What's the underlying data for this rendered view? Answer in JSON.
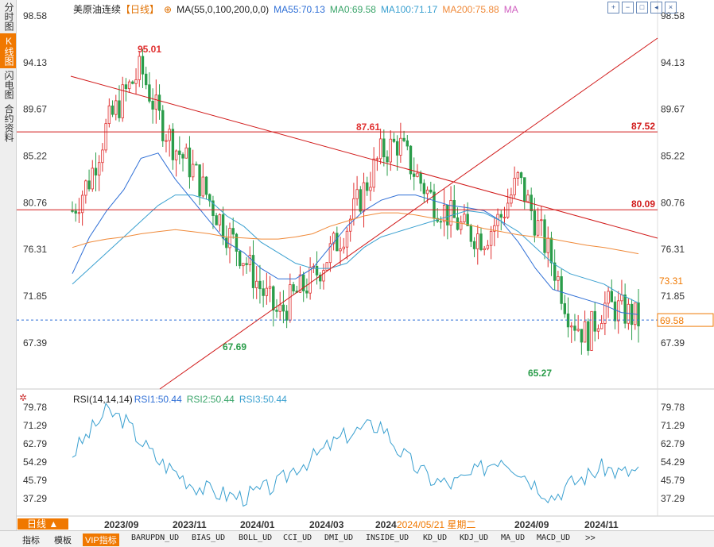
{
  "sidebar": {
    "tabs": [
      {
        "label": "分时图",
        "active": false
      },
      {
        "label": "K线图",
        "active": true
      },
      {
        "label": "闪电图",
        "active": false
      },
      {
        "label": "合约资料",
        "active": false
      }
    ]
  },
  "header": {
    "title": "美原油连续",
    "period_tag": "【日线】",
    "ma_params": "MA(55,0,100,200,0,0)",
    "ma55": "MA55:70.13",
    "ma0": "MA0:69.58",
    "ma100": "MA100:71.17",
    "ma200": "MA200:75.88",
    "ma_extra": "MA",
    "tool_icons": [
      "zoom-in-icon",
      "zoom-out-icon",
      "fullscreen-icon",
      "arrow-left-icon",
      "close-icon"
    ]
  },
  "colors": {
    "accent": "#f07800",
    "up": "#e03030",
    "down": "#2a9d4a",
    "ma55": "#2f6fd6",
    "ma0": "#3aa56a",
    "ma100": "#3aa0d0",
    "ma200": "#f08a3a",
    "trendline": "#d11a1a",
    "last_price": "#2f6fd6"
  },
  "price_axis": {
    "ticks": [
      "98.58",
      "94.13",
      "89.67",
      "85.22",
      "80.76",
      "76.31",
      "71.85",
      "67.39"
    ],
    "last_price_label": "69.58",
    "highlight_label": "73.31"
  },
  "annotations": {
    "high_2023": "95.01",
    "low_2023": "67.69",
    "high_2024": "87.61",
    "low_2024": "65.27",
    "line_887": "87.52",
    "line_800": "80.09"
  },
  "rsi": {
    "params": "RSI(14,14,14)",
    "rsi1": "RSI1:50.44",
    "rsi2": "RSI2:50.44",
    "rsi3": "RSI3:50.44",
    "ticks": [
      "79.78",
      "71.29",
      "62.79",
      "54.29",
      "45.79",
      "37.29"
    ],
    "gear_icon": "gear-icon"
  },
  "time_axis": {
    "labels": [
      "2023/09",
      "2023/11",
      "2024/01",
      "2024/03",
      "2024",
      "2024/09",
      "2024/11"
    ],
    "cursor_label": "2024/05/21 星期二"
  },
  "bottom": {
    "period_select": "日线",
    "tabs": [
      "指标",
      "模板",
      "VIP指标",
      "BARUPDN_UD",
      "BIAS_UD",
      "BOLL_UD",
      "CCI_UD",
      "DMI_UD",
      "INSIDE_UD",
      "KD_UD",
      "KDJ_UD",
      "MA_UD",
      "MACD_UD",
      ">>"
    ]
  },
  "chart_data": {
    "type": "candlestick",
    "title": "美原油连续",
    "ylim": [
      64,
      99
    ],
    "series": [
      {
        "name": "MA55",
        "values": [
          74.0,
          77.5,
          80.0,
          82.0,
          85.0,
          85.5,
          83.0,
          81.0,
          79.0,
          77.0,
          76.0,
          74.5,
          73.5,
          73.5,
          74.5,
          76.5,
          78.5,
          80.0,
          81.0,
          81.5,
          81.5,
          81.0,
          80.5,
          80.3,
          80.0,
          79.0,
          77.0,
          74.5,
          72.5,
          72.0,
          71.5,
          71.0,
          70.3,
          70.1
        ]
      },
      {
        "name": "MA100",
        "values": [
          73.0,
          74.5,
          76.0,
          77.5,
          79.0,
          80.5,
          81.5,
          81.5,
          81.0,
          79.5,
          78.5,
          77.0,
          76.0,
          75.0,
          74.5,
          74.5,
          75.0,
          76.5,
          77.5,
          78.0,
          78.5,
          79.0,
          79.5,
          80.0,
          79.8,
          79.0,
          78.0,
          76.5,
          75.0,
          74.0,
          73.5,
          73.0,
          72.0,
          71.2
        ]
      },
      {
        "name": "MA200",
        "values": [
          76.5,
          77.0,
          77.3,
          77.5,
          77.8,
          78.0,
          78.2,
          78.0,
          77.8,
          77.5,
          77.4,
          77.3,
          77.3,
          77.5,
          77.8,
          78.5,
          79.0,
          79.5,
          79.8,
          79.8,
          79.6,
          79.3,
          79.0,
          78.7,
          78.3,
          78.0,
          77.7,
          77.5,
          77.3,
          77.0,
          76.7,
          76.5,
          76.2,
          75.9
        ]
      },
      {
        "name": "Close",
        "values": [
          80.0,
          83.0,
          88.0,
          91.0,
          93.5,
          89.0,
          86.0,
          84.0,
          81.0,
          78.0,
          75.5,
          72.5,
          70.0,
          72.0,
          73.5,
          76.0,
          78.5,
          82.0,
          85.5,
          86.5,
          83.5,
          81.0,
          79.5,
          78.0,
          77.5,
          79.5,
          83.0,
          79.0,
          75.0,
          70.0,
          68.0,
          71.0,
          70.5,
          69.6
        ]
      }
    ],
    "levels": [
      87.52,
      80.09
    ],
    "annotations": {
      "high1": 95.01,
      "low1": 67.69,
      "high2": 87.61,
      "low2": 65.27
    },
    "rsi_values": [
      58,
      68,
      78,
      74,
      64,
      55,
      50,
      44,
      41,
      39,
      38,
      41,
      44,
      52,
      56,
      62,
      67,
      70,
      72,
      60,
      52,
      46,
      44,
      47,
      52,
      57,
      51,
      44,
      38,
      44,
      48,
      52,
      49,
      50.44
    ]
  }
}
